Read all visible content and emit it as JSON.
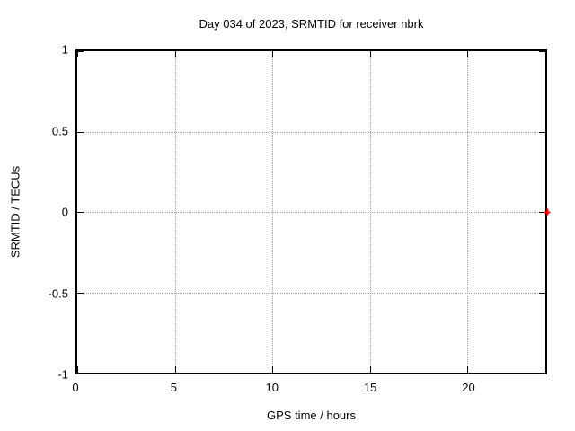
{
  "chart_data": {
    "type": "scatter",
    "title": "Day 034 of 2023, SRMTID for receiver nbrk",
    "xlabel": "GPS time / hours",
    "ylabel": "SRMTID / TECUs",
    "xlim": [
      0,
      24
    ],
    "ylim": [
      -1,
      1
    ],
    "x_ticks": [
      0,
      5,
      10,
      15,
      20
    ],
    "y_ticks": [
      -1,
      -0.5,
      0,
      0.5,
      1
    ],
    "grid": true,
    "legend": "none",
    "series": [
      {
        "name": "SRMTID",
        "marker": "plus",
        "color": "#ff0000",
        "points": [
          {
            "x": 24,
            "y": 0
          }
        ]
      }
    ],
    "colors": {
      "background": "#ffffff",
      "border": "#000000",
      "grid": "#999999",
      "text": "#000000",
      "point": "#ff0000"
    }
  }
}
